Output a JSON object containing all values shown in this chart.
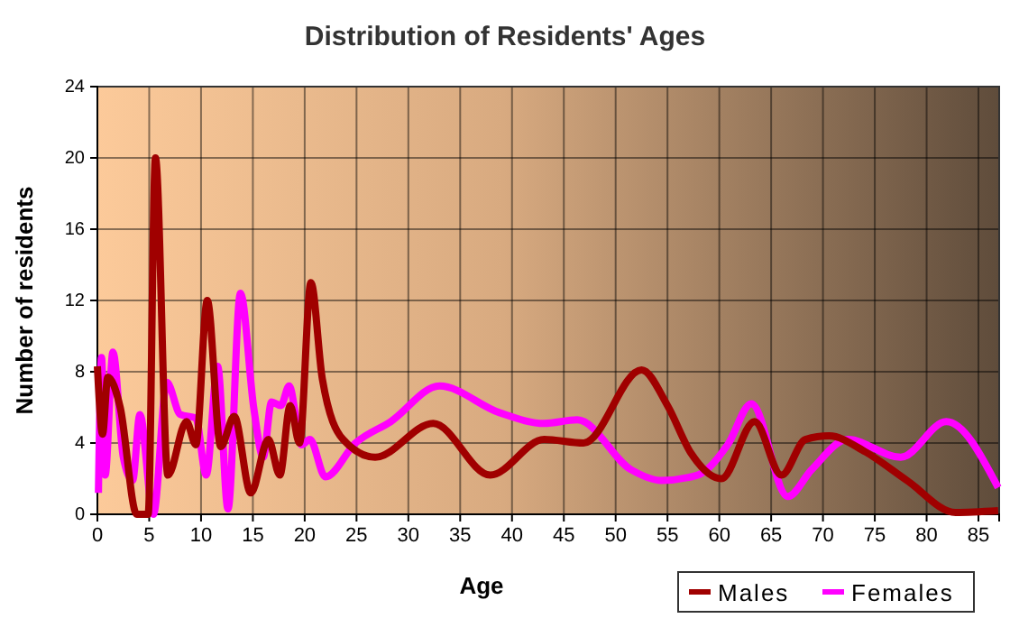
{
  "chart_data": {
    "type": "line",
    "title": "Distribution of Residents' Ages",
    "xlabel": "Age",
    "ylabel": "Number of residents",
    "xlim": [
      0,
      87
    ],
    "xticks": [
      0,
      5,
      10,
      15,
      20,
      25,
      30,
      35,
      40,
      45,
      50,
      55,
      60,
      65,
      70,
      75,
      80,
      85
    ],
    "ylim": [
      0,
      24
    ],
    "yticks": [
      0,
      4,
      8,
      12,
      16,
      20,
      24
    ],
    "grid": true,
    "legend": "bottom right",
    "line_style": "solid",
    "marker": "none",
    "series": [
      {
        "name": "Males",
        "color": "#a00000",
        "x": [
          0,
          0.5,
          1,
          2.2,
          3.8,
          4.9,
          5.6,
          6.8,
          8.6,
          9.5,
          10.6,
          11.9,
          13.2,
          14.8,
          16.5,
          17.6,
          18.6,
          19.5,
          20.6,
          21.7,
          23.7,
          26.8,
          32.4,
          37.9,
          43.1,
          46.9,
          52.5,
          55,
          57.3,
          60.2,
          63.4,
          66,
          68.3,
          70.6,
          74.1,
          78.1,
          82.8,
          86.9
        ],
        "values": [
          8.3,
          4.5,
          7.7,
          6,
          0,
          0,
          20,
          2.2,
          5.2,
          3.9,
          12,
          3.8,
          5.5,
          1.2,
          4.2,
          2.2,
          6.1,
          4,
          13,
          7.6,
          4.2,
          3.2,
          5.1,
          2.2,
          4.2,
          4,
          8.1,
          6.1,
          3.4,
          2,
          5.2,
          2.2,
          4.2,
          4.4,
          3.5,
          1.9,
          0.1,
          0.2
        ]
      },
      {
        "name": "Females",
        "color": "#ff00ff",
        "x": [
          0.1,
          0.4,
          0.75,
          1.5,
          2.5,
          3.4,
          4.1,
          5.4,
          6.7,
          8,
          9.5,
          10.5,
          11.6,
          12.6,
          13.8,
          15.1,
          16,
          16.8,
          17.7,
          18.5,
          19.7,
          20.5,
          22,
          24.9,
          28.3,
          33,
          38.8,
          43.1,
          46.3,
          51.5,
          54.4,
          57.9,
          60.8,
          63.1,
          66.6,
          68.9,
          72.4,
          77.5,
          81.9,
          86.9
        ],
        "values": [
          1.2,
          8.8,
          2.2,
          9.1,
          3.2,
          1.9,
          5.6,
          0,
          7.4,
          5.6,
          5.4,
          2.2,
          8.3,
          0.3,
          12.4,
          5.9,
          3.2,
          6.3,
          6.1,
          7.2,
          3.9,
          4.2,
          2.1,
          4,
          5.2,
          7.2,
          5.7,
          5.1,
          5.3,
          2.5,
          1.9,
          2.2,
          3.9,
          6.2,
          1,
          2.5,
          4.2,
          3.2,
          5.2,
          1.5
        ]
      }
    ]
  }
}
